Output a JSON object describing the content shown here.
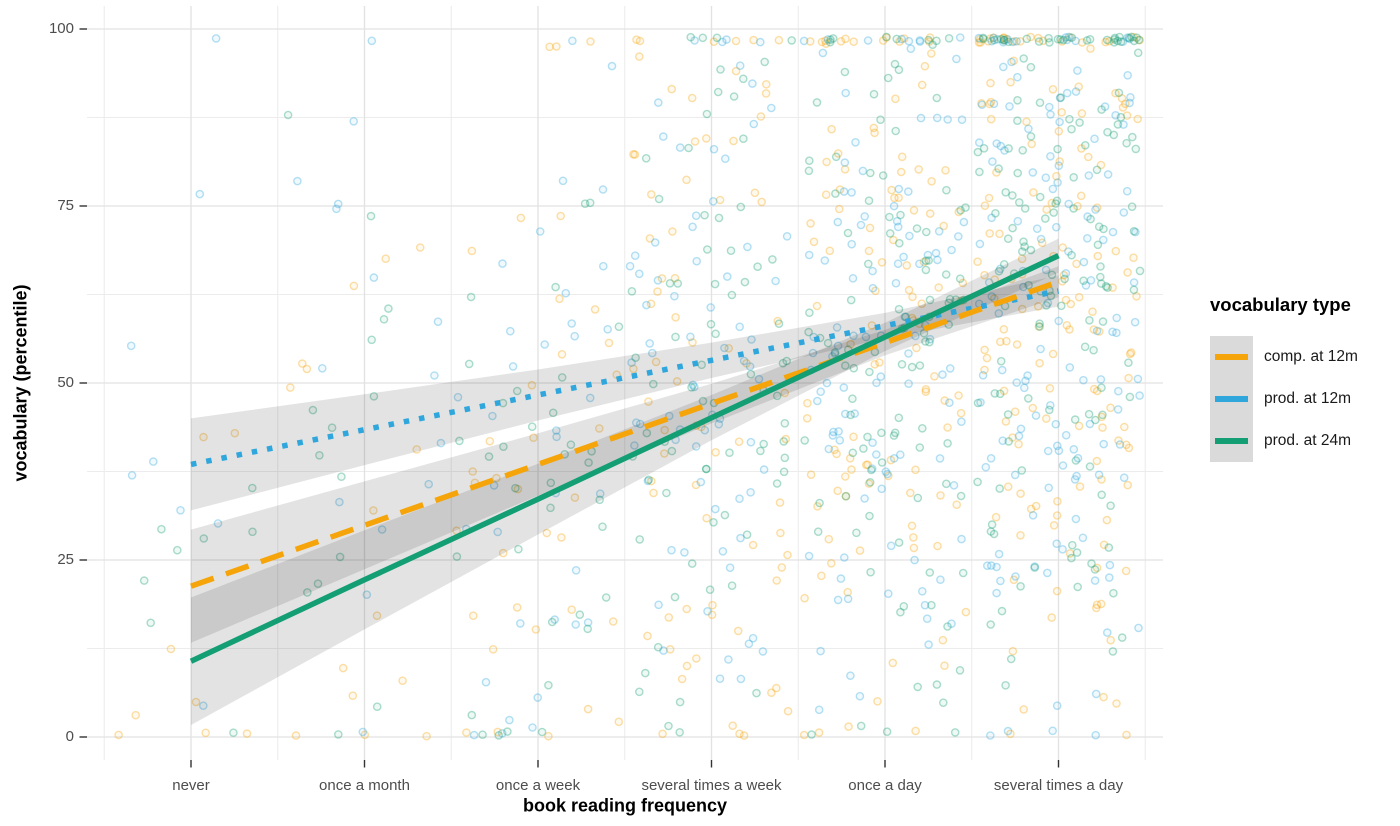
{
  "chart_data": {
    "type": "scatter",
    "title": "",
    "xlabel": "book reading frequency",
    "ylabel": "vocabulary (percentile)",
    "categories": [
      "never",
      "once a month",
      "once a week",
      "several times a week",
      "once a day",
      "several times a day"
    ],
    "y_ticks": [
      0,
      25,
      50,
      75,
      100
    ],
    "ylim": [
      0,
      100
    ],
    "grid": {
      "major_color": "#e2e2e2",
      "minor_color": "#ececec",
      "background": "#ffffff"
    },
    "axis": {
      "tick_color": "#333333",
      "tick_label_color": "#4d4d4d",
      "title_color": "#000000"
    },
    "legend": {
      "title": "vocabulary type",
      "position": "right",
      "key_background": "#dadada"
    },
    "series": [
      {
        "name": "comp. at 12m",
        "color": "#f5a40a",
        "linestyle": "dashed",
        "fit_values": [
          21.3,
          29.9,
          38.5,
          47.1,
          55.7,
          64.3
        ],
        "ci_halfwidth": [
          8.0,
          6.2,
          4.4,
          2.8,
          1.8,
          2.2
        ]
      },
      {
        "name": "prod. at 12m",
        "color": "#2fa6dc",
        "linestyle": "dotted",
        "fit_values": [
          38.5,
          43.4,
          48.3,
          53.2,
          58.1,
          63.0
        ],
        "ci_halfwidth": [
          6.5,
          5.0,
          3.6,
          2.5,
          1.8,
          2.2
        ]
      },
      {
        "name": "prod. at 24m",
        "color": "#149e74",
        "linestyle": "solid",
        "fit_values": [
          10.7,
          22.2,
          33.6,
          45.1,
          56.5,
          68.0
        ],
        "ci_halfwidth": [
          9.0,
          7.0,
          5.0,
          3.2,
          2.0,
          2.4
        ]
      }
    ],
    "ribbon": {
      "fill": "#1a1a1a",
      "opacity": 0.12
    },
    "scatter_simulation": {
      "note": "Jittered individual observations; exact values not readable from pixels. Points regenerated from per-category truncated-normal clouds centered on each series fit.",
      "counts_per_series_per_category": [
        8,
        15,
        35,
        73,
        110,
        150
      ],
      "sd": 29,
      "clamp": [
        0.5,
        98.5
      ],
      "jitter_width_units": 0.47,
      "jitter_height_units": 0.4,
      "point_radius": 3.6,
      "stroke_opacity": 0.35,
      "fill_opacity": 0.07,
      "seed": 11
    }
  }
}
